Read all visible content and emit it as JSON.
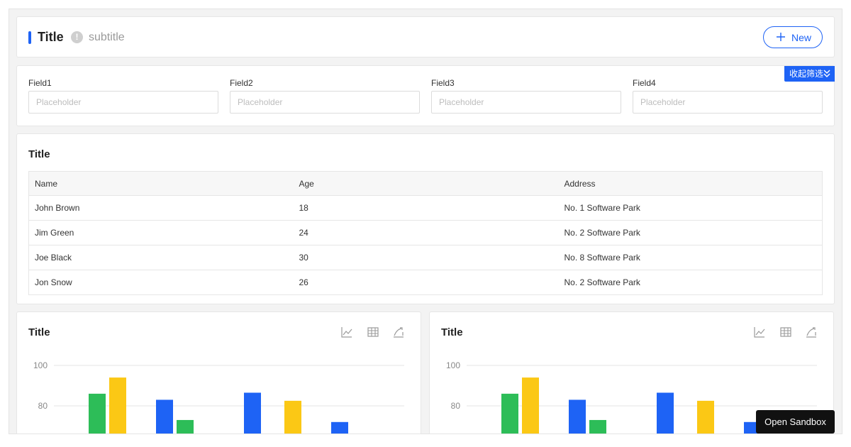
{
  "header": {
    "title": "Title",
    "info_icon": "!",
    "subtitle": "subtitle",
    "new_button": "New"
  },
  "filter": {
    "toggle_label": "收起筛选",
    "fields": [
      {
        "label": "Field1",
        "placeholder": "Placeholder"
      },
      {
        "label": "Field2",
        "placeholder": "Placeholder"
      },
      {
        "label": "Field3",
        "placeholder": "Placeholder"
      },
      {
        "label": "Field4",
        "placeholder": "Placeholder"
      }
    ]
  },
  "table_card": {
    "title": "Title",
    "columns": [
      "Name",
      "Age",
      "Address"
    ],
    "rows": [
      {
        "name": "John Brown",
        "age": "18",
        "address": "No. 1 Software Park"
      },
      {
        "name": "Jim Green",
        "age": "24",
        "address": "No. 2 Software Park"
      },
      {
        "name": "Joe Black",
        "age": "30",
        "address": "No. 8 Software Park"
      },
      {
        "name": "Jon Snow",
        "age": "26",
        "address": "No. 2 Software Park"
      }
    ]
  },
  "chart_cards": [
    {
      "title": "Title",
      "tools": [
        "line-chart-icon",
        "table-icon",
        "area-chart-icon"
      ]
    },
    {
      "title": "Title",
      "tools": [
        "line-chart-icon",
        "table-icon",
        "area-chart-icon"
      ]
    }
  ],
  "chart_data": [
    {
      "type": "bar",
      "title": "Title",
      "yticks": [
        100,
        80
      ],
      "ylim": [
        60,
        100
      ],
      "bars": [
        {
          "value": 86,
          "color": "#2dbd58"
        },
        {
          "value": 94,
          "color": "#fbc815"
        },
        {
          "value": 83,
          "color": "#1e63f5"
        },
        {
          "value": 73,
          "color": "#2dbd58"
        },
        {
          "value": 86.5,
          "color": "#1e63f5"
        },
        {
          "value": 82.5,
          "color": "#fbc815"
        },
        {
          "value": 72,
          "color": "#1e63f5"
        }
      ]
    },
    {
      "type": "bar",
      "title": "Title",
      "yticks": [
        100,
        80
      ],
      "ylim": [
        60,
        100
      ],
      "bars": [
        {
          "value": 86,
          "color": "#2dbd58"
        },
        {
          "value": 94,
          "color": "#fbc815"
        },
        {
          "value": 83,
          "color": "#1e63f5"
        },
        {
          "value": 73,
          "color": "#2dbd58"
        },
        {
          "value": 86.5,
          "color": "#1e63f5"
        },
        {
          "value": 82.5,
          "color": "#fbc815"
        },
        {
          "value": 72,
          "color": "#1e63f5"
        }
      ]
    }
  ],
  "sandbox_button": "Open Sandbox",
  "colors": {
    "accent": "#1e63f5",
    "green": "#2dbd58",
    "yellow": "#fbc815"
  }
}
